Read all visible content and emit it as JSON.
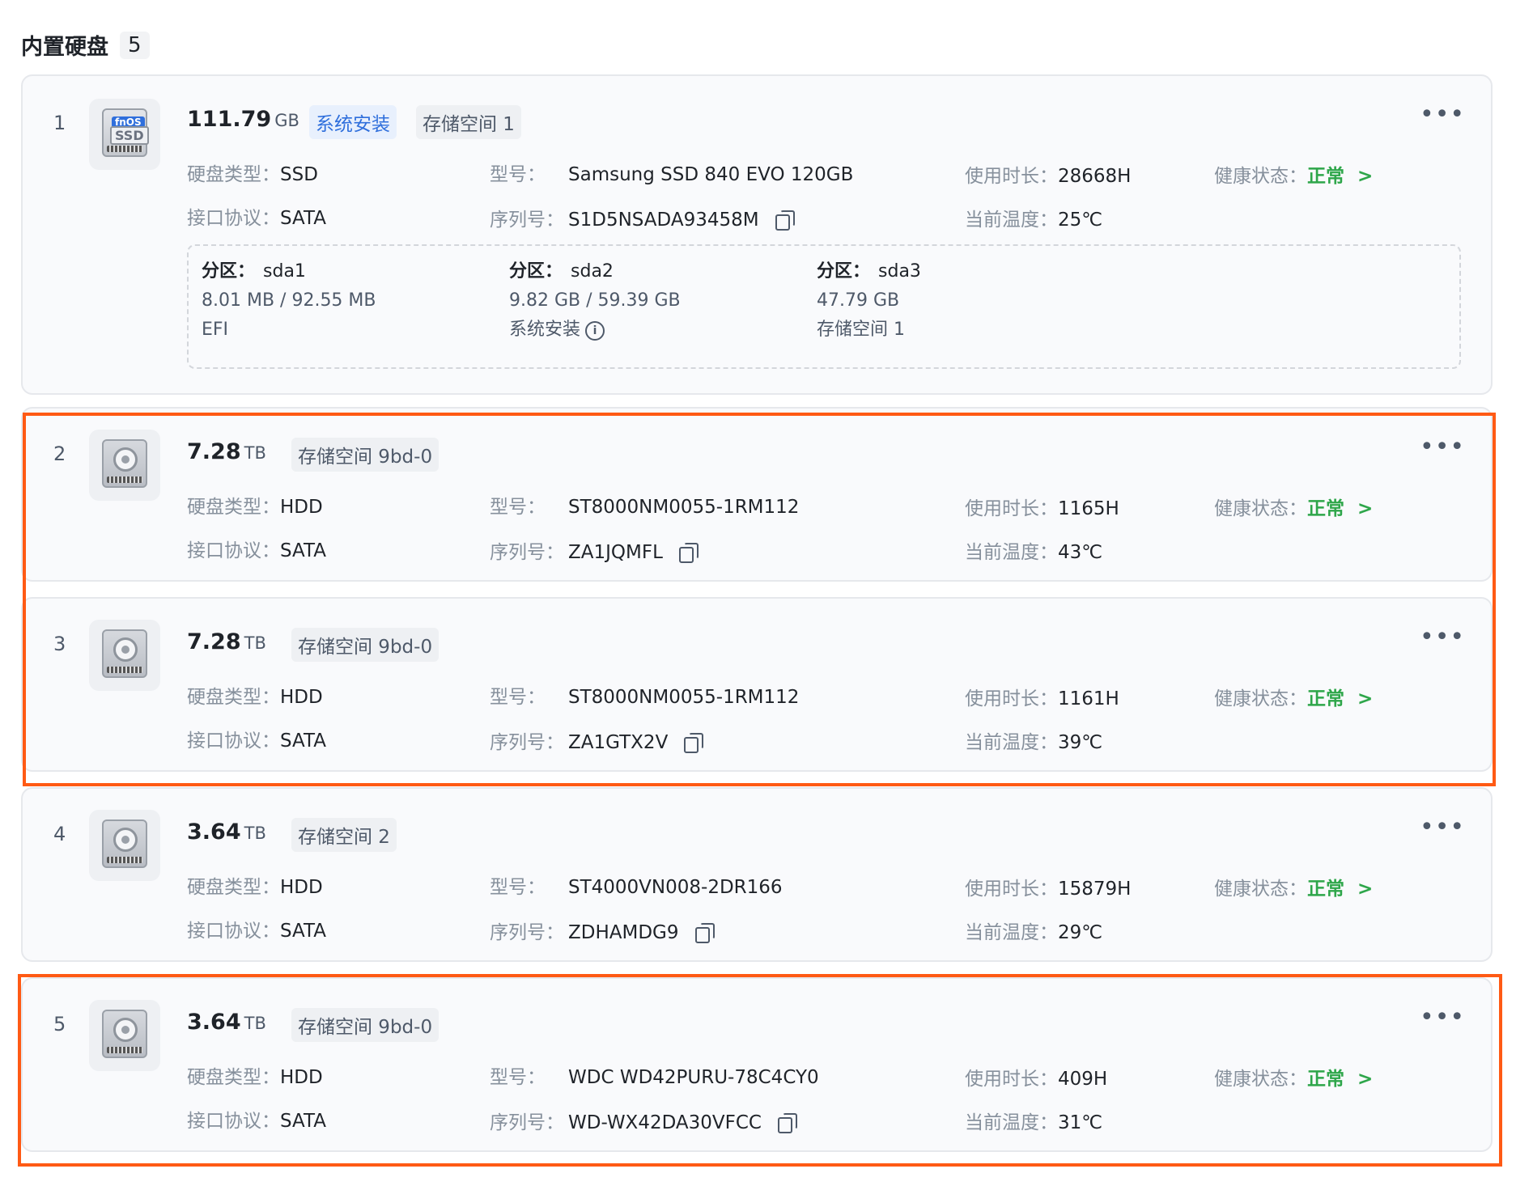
{
  "header": {
    "title": "内置硬盘",
    "count": "5"
  },
  "labels": {
    "disk_type": "硬盘类型：",
    "interface": "接口协议：",
    "model": "型号：",
    "serial": "序列号：",
    "usage_time": "使用时长：",
    "temperature": "当前温度：",
    "health": "健康状态：",
    "partition": "分区："
  },
  "disks": [
    {
      "index": "1",
      "capacity": "111.79",
      "unit": "GB",
      "tags": [
        "系统安装",
        "存储空间 1"
      ],
      "type": "SSD",
      "interface": "SATA",
      "model": "Samsung SSD 840 EVO 120GB",
      "serial": "S1D5NSADA93458M",
      "usage": "28668H",
      "temp": "25℃",
      "health": "正常",
      "partitions": [
        {
          "name": "sda1",
          "size": "8.01 MB / 92.55 MB",
          "use": "EFI"
        },
        {
          "name": "sda2",
          "size": "9.82 GB / 59.39 GB",
          "use": "系统安装"
        },
        {
          "name": "sda3",
          "size": "47.79 GB",
          "use": "存储空间 1"
        }
      ]
    },
    {
      "index": "2",
      "capacity": "7.28",
      "unit": "TB",
      "tags": [
        "存储空间 9bd-0"
      ],
      "type": "HDD",
      "interface": "SATA",
      "model": "ST8000NM0055-1RM112",
      "serial": "ZA1JQMFL",
      "usage": "1165H",
      "temp": "43℃",
      "health": "正常"
    },
    {
      "index": "3",
      "capacity": "7.28",
      "unit": "TB",
      "tags": [
        "存储空间 9bd-0"
      ],
      "type": "HDD",
      "interface": "SATA",
      "model": "ST8000NM0055-1RM112",
      "serial": "ZA1GTX2V",
      "usage": "1161H",
      "temp": "39℃",
      "health": "正常"
    },
    {
      "index": "4",
      "capacity": "3.64",
      "unit": "TB",
      "tags": [
        "存储空间 2"
      ],
      "type": "HDD",
      "interface": "SATA",
      "model": "ST4000VN008-2DR166",
      "serial": "ZDHAMDG9",
      "usage": "15879H",
      "temp": "29℃",
      "health": "正常"
    },
    {
      "index": "5",
      "capacity": "3.64",
      "unit": "TB",
      "tags": [
        "存储空间 9bd-0"
      ],
      "type": "HDD",
      "interface": "SATA",
      "model": "WDC WD42PURU-78C4CY0",
      "serial": "WD-WX42DA30VFCC",
      "usage": "409H",
      "temp": "31℃",
      "health": "正常"
    }
  ],
  "icons": {
    "ssd_badge": "fnOS",
    "ssd_text": "SSD"
  },
  "colors": {
    "accent": "#2f6fdc",
    "ok": "#2ea64a",
    "highlight": "#ff5a14"
  }
}
